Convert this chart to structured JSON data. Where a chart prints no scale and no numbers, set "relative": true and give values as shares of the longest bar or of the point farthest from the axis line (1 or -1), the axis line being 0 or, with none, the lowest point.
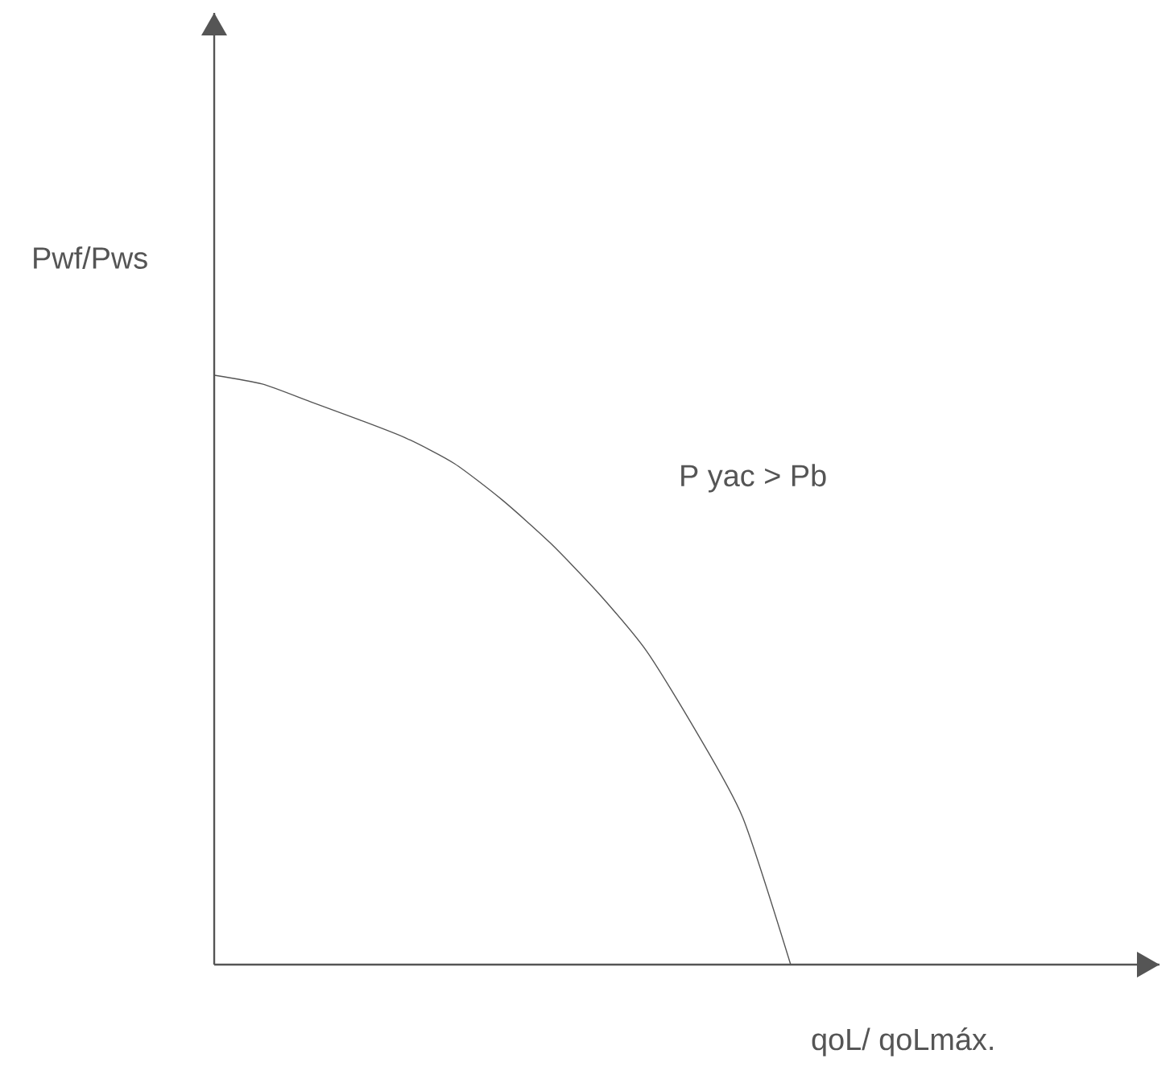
{
  "chart_data": {
    "type": "line",
    "relative": true,
    "xlabel": "qoL/ qoLmáx.",
    "ylabel": "Pwf/Pws",
    "annotations": [
      "P yac > Pb"
    ],
    "color": "#555555",
    "categories": [
      null,
      null,
      null,
      null,
      null,
      null,
      null,
      null,
      null,
      null,
      null,
      null,
      null,
      null,
      null,
      null,
      null,
      null,
      null,
      null
    ],
    "values": [
      1,
      0.985,
      0.955,
      0.925,
      0.893,
      0.85,
      0.788,
      0.715,
      0.63,
      0.532,
      0.4,
      0.25,
      0,
      null,
      null,
      null,
      null,
      null,
      null,
      null
    ]
  }
}
